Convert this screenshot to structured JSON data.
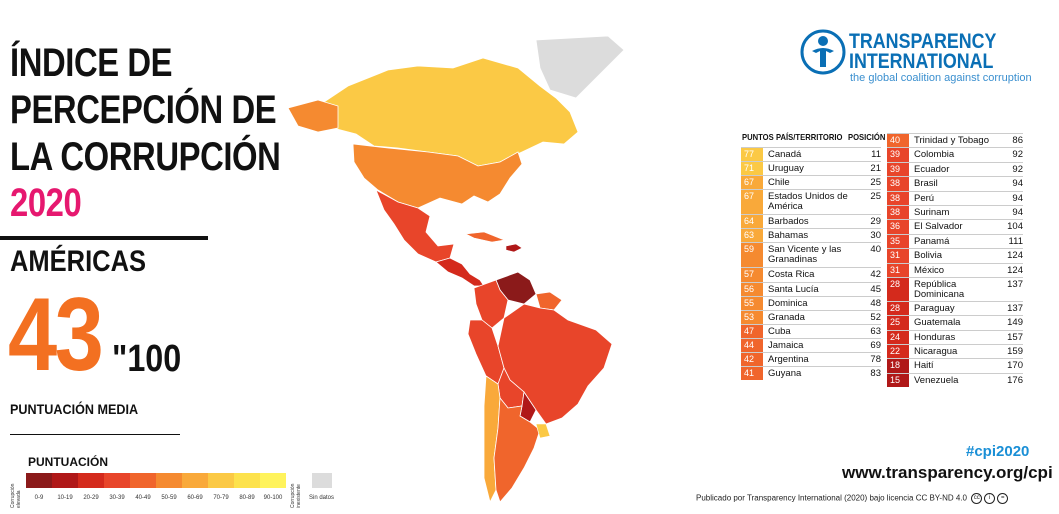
{
  "title": {
    "line1": "ÍNDICE DE",
    "line2": "PERCEPCIÓN DE",
    "line3": "LA CORRUPCIÓN",
    "year": "2020"
  },
  "region": {
    "name": "AMÉRICAS",
    "average": "43",
    "out_of": "\"100",
    "average_label": "PUNTUACIÓN MEDIA"
  },
  "legend": {
    "title": "PUNTUACIÓN",
    "left_note": "Corrupción elevada",
    "right_note": "Corrupción inexistente",
    "no_data": "Sin datos",
    "no_data_color": "#dcdcdc",
    "bins": [
      {
        "label": "0-9",
        "color": "#8b1a1a"
      },
      {
        "label": "10-19",
        "color": "#b01818"
      },
      {
        "label": "20-29",
        "color": "#d42a1c"
      },
      {
        "label": "30-39",
        "color": "#e8452a"
      },
      {
        "label": "40-49",
        "color": "#f0652c"
      },
      {
        "label": "50-59",
        "color": "#f58a30"
      },
      {
        "label": "60-69",
        "color": "#f9a93a"
      },
      {
        "label": "70-79",
        "color": "#fbc945"
      },
      {
        "label": "80-89",
        "color": "#fde24c"
      },
      {
        "label": "90-100",
        "color": "#fff35c"
      }
    ]
  },
  "logo": {
    "line1": "TRANSPARENCY",
    "line2": "INTERNATIONAL",
    "tagline": "the global coalition against corruption",
    "color": "#0a6fb5"
  },
  "table": {
    "headers": {
      "points": "PUNTOS",
      "country": "PAÍS/TERRITORIO",
      "rank": "POSICIÓN"
    },
    "left": [
      {
        "score": "77",
        "country": "Canadá",
        "rank": "11"
      },
      {
        "score": "71",
        "country": "Uruguay",
        "rank": "21"
      },
      {
        "score": "67",
        "country": "Chile",
        "rank": "25"
      },
      {
        "score": "67",
        "country": "Estados Unidos de América",
        "rank": "25"
      },
      {
        "score": "64",
        "country": "Barbados",
        "rank": "29"
      },
      {
        "score": "63",
        "country": "Bahamas",
        "rank": "30"
      },
      {
        "score": "59",
        "country": "San Vicente y las Granadinas",
        "rank": "40"
      },
      {
        "score": "57",
        "country": "Costa Rica",
        "rank": "42"
      },
      {
        "score": "56",
        "country": "Santa Lucía",
        "rank": "45"
      },
      {
        "score": "55",
        "country": "Dominica",
        "rank": "48"
      },
      {
        "score": "53",
        "country": "Granada",
        "rank": "52"
      },
      {
        "score": "47",
        "country": "Cuba",
        "rank": "63"
      },
      {
        "score": "44",
        "country": "Jamaica",
        "rank": "69"
      },
      {
        "score": "42",
        "country": "Argentina",
        "rank": "78"
      },
      {
        "score": "41",
        "country": "Guyana",
        "rank": "83"
      }
    ],
    "right": [
      {
        "score": "40",
        "country": "Trinidad y Tobago",
        "rank": "86"
      },
      {
        "score": "39",
        "country": "Colombia",
        "rank": "92"
      },
      {
        "score": "39",
        "country": "Ecuador",
        "rank": "92"
      },
      {
        "score": "38",
        "country": "Brasil",
        "rank": "94"
      },
      {
        "score": "38",
        "country": "Perú",
        "rank": "94"
      },
      {
        "score": "38",
        "country": "Surinam",
        "rank": "94"
      },
      {
        "score": "36",
        "country": "El Salvador",
        "rank": "104"
      },
      {
        "score": "35",
        "country": "Panamá",
        "rank": "111"
      },
      {
        "score": "31",
        "country": "Bolivia",
        "rank": "124"
      },
      {
        "score": "31",
        "country": "México",
        "rank": "124"
      },
      {
        "score": "28",
        "country": "República Dominicana",
        "rank": "137"
      },
      {
        "score": "28",
        "country": "Paraguay",
        "rank": "137"
      },
      {
        "score": "25",
        "country": "Guatemala",
        "rank": "149"
      },
      {
        "score": "24",
        "country": "Honduras",
        "rank": "157"
      },
      {
        "score": "22",
        "country": "Nicaragua",
        "rank": "159"
      },
      {
        "score": "18",
        "country": "Haití",
        "rank": "170"
      },
      {
        "score": "15",
        "country": "Venezuela",
        "rank": "176"
      }
    ]
  },
  "footer": {
    "hashtag": "#cpi2020",
    "website": "www.transparency.org/cpi",
    "credit": "Publicado por Transparency International (2020) bajo licencia CC BY-ND 4.0"
  }
}
